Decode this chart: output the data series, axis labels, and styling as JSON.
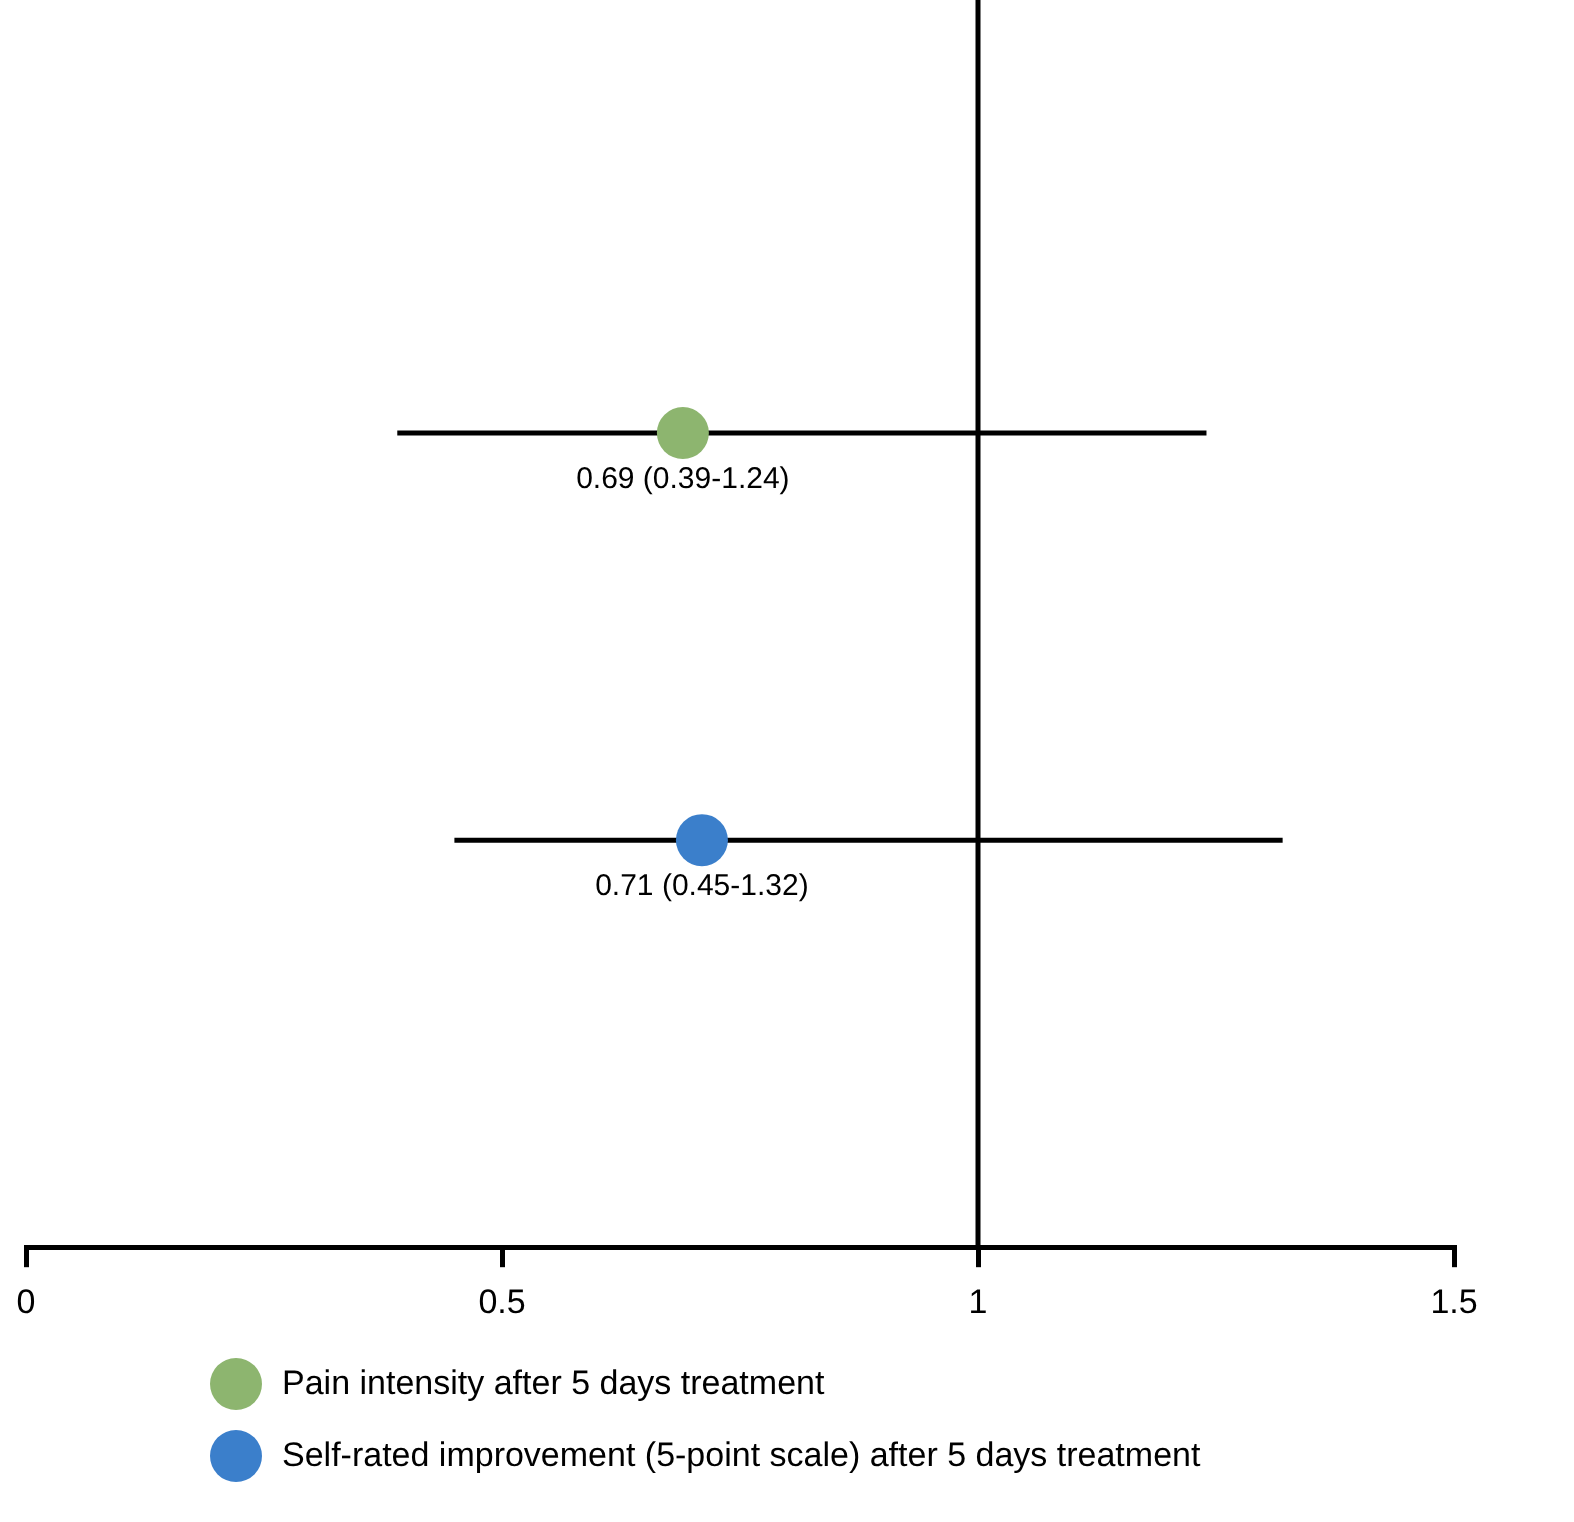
{
  "chart_data": {
    "type": "scatter",
    "orientation": "horizontal",
    "categories": [
      null,
      null,
      null,
      null
    ],
    "series": [
      {
        "name": "Pain intensity after 5 days treatment",
        "color": "#8db56f",
        "values": [
          null,
          0.69,
          null,
          null
        ],
        "errors": [
          null,
          [
            0.39,
            1.24
          ],
          null,
          null
        ],
        "value_labels": [
          null,
          "0.69 (0.39-1.24)",
          null,
          null
        ]
      },
      {
        "name": "Self-rated improvement (5-point scale) after 5 days treatment",
        "color": "#3b7fcb",
        "values": [
          null,
          null,
          0.71,
          null
        ],
        "errors": [
          null,
          null,
          [
            0.45,
            1.32
          ],
          null
        ],
        "value_labels": [
          null,
          null,
          "0.71 (0.45-1.32)",
          null
        ]
      }
    ],
    "xlim": [
      0,
      1.5
    ],
    "xticks": [
      0,
      0.5,
      1,
      1.5
    ],
    "ref_lines": [
      {
        "axis": "x",
        "value": 1,
        "color": "#000000"
      }
    ],
    "grid": false,
    "legend": "bottom left",
    "marker": "circle"
  }
}
